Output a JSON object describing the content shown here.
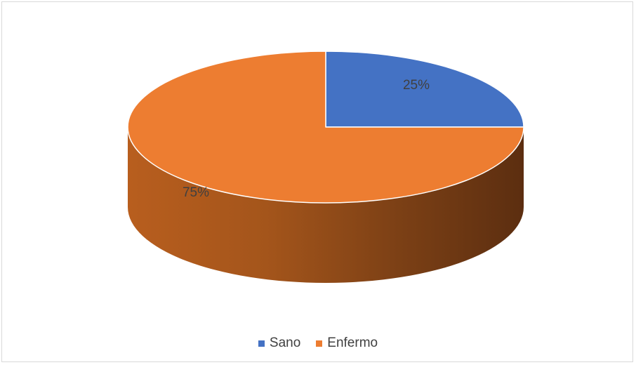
{
  "chart_data": {
    "type": "pie",
    "style": "3d",
    "categories": [
      "Sano",
      "Enfermo"
    ],
    "values": [
      25,
      75
    ],
    "data_labels": [
      "25%",
      "75%"
    ],
    "colors": [
      "#4472C4",
      "#ED7D31"
    ],
    "legend_position": "bottom",
    "title": ""
  },
  "legend": {
    "items": [
      {
        "label": "Sano",
        "color": "#4472C4"
      },
      {
        "label": "Enfermo",
        "color": "#ED7D31"
      }
    ]
  }
}
